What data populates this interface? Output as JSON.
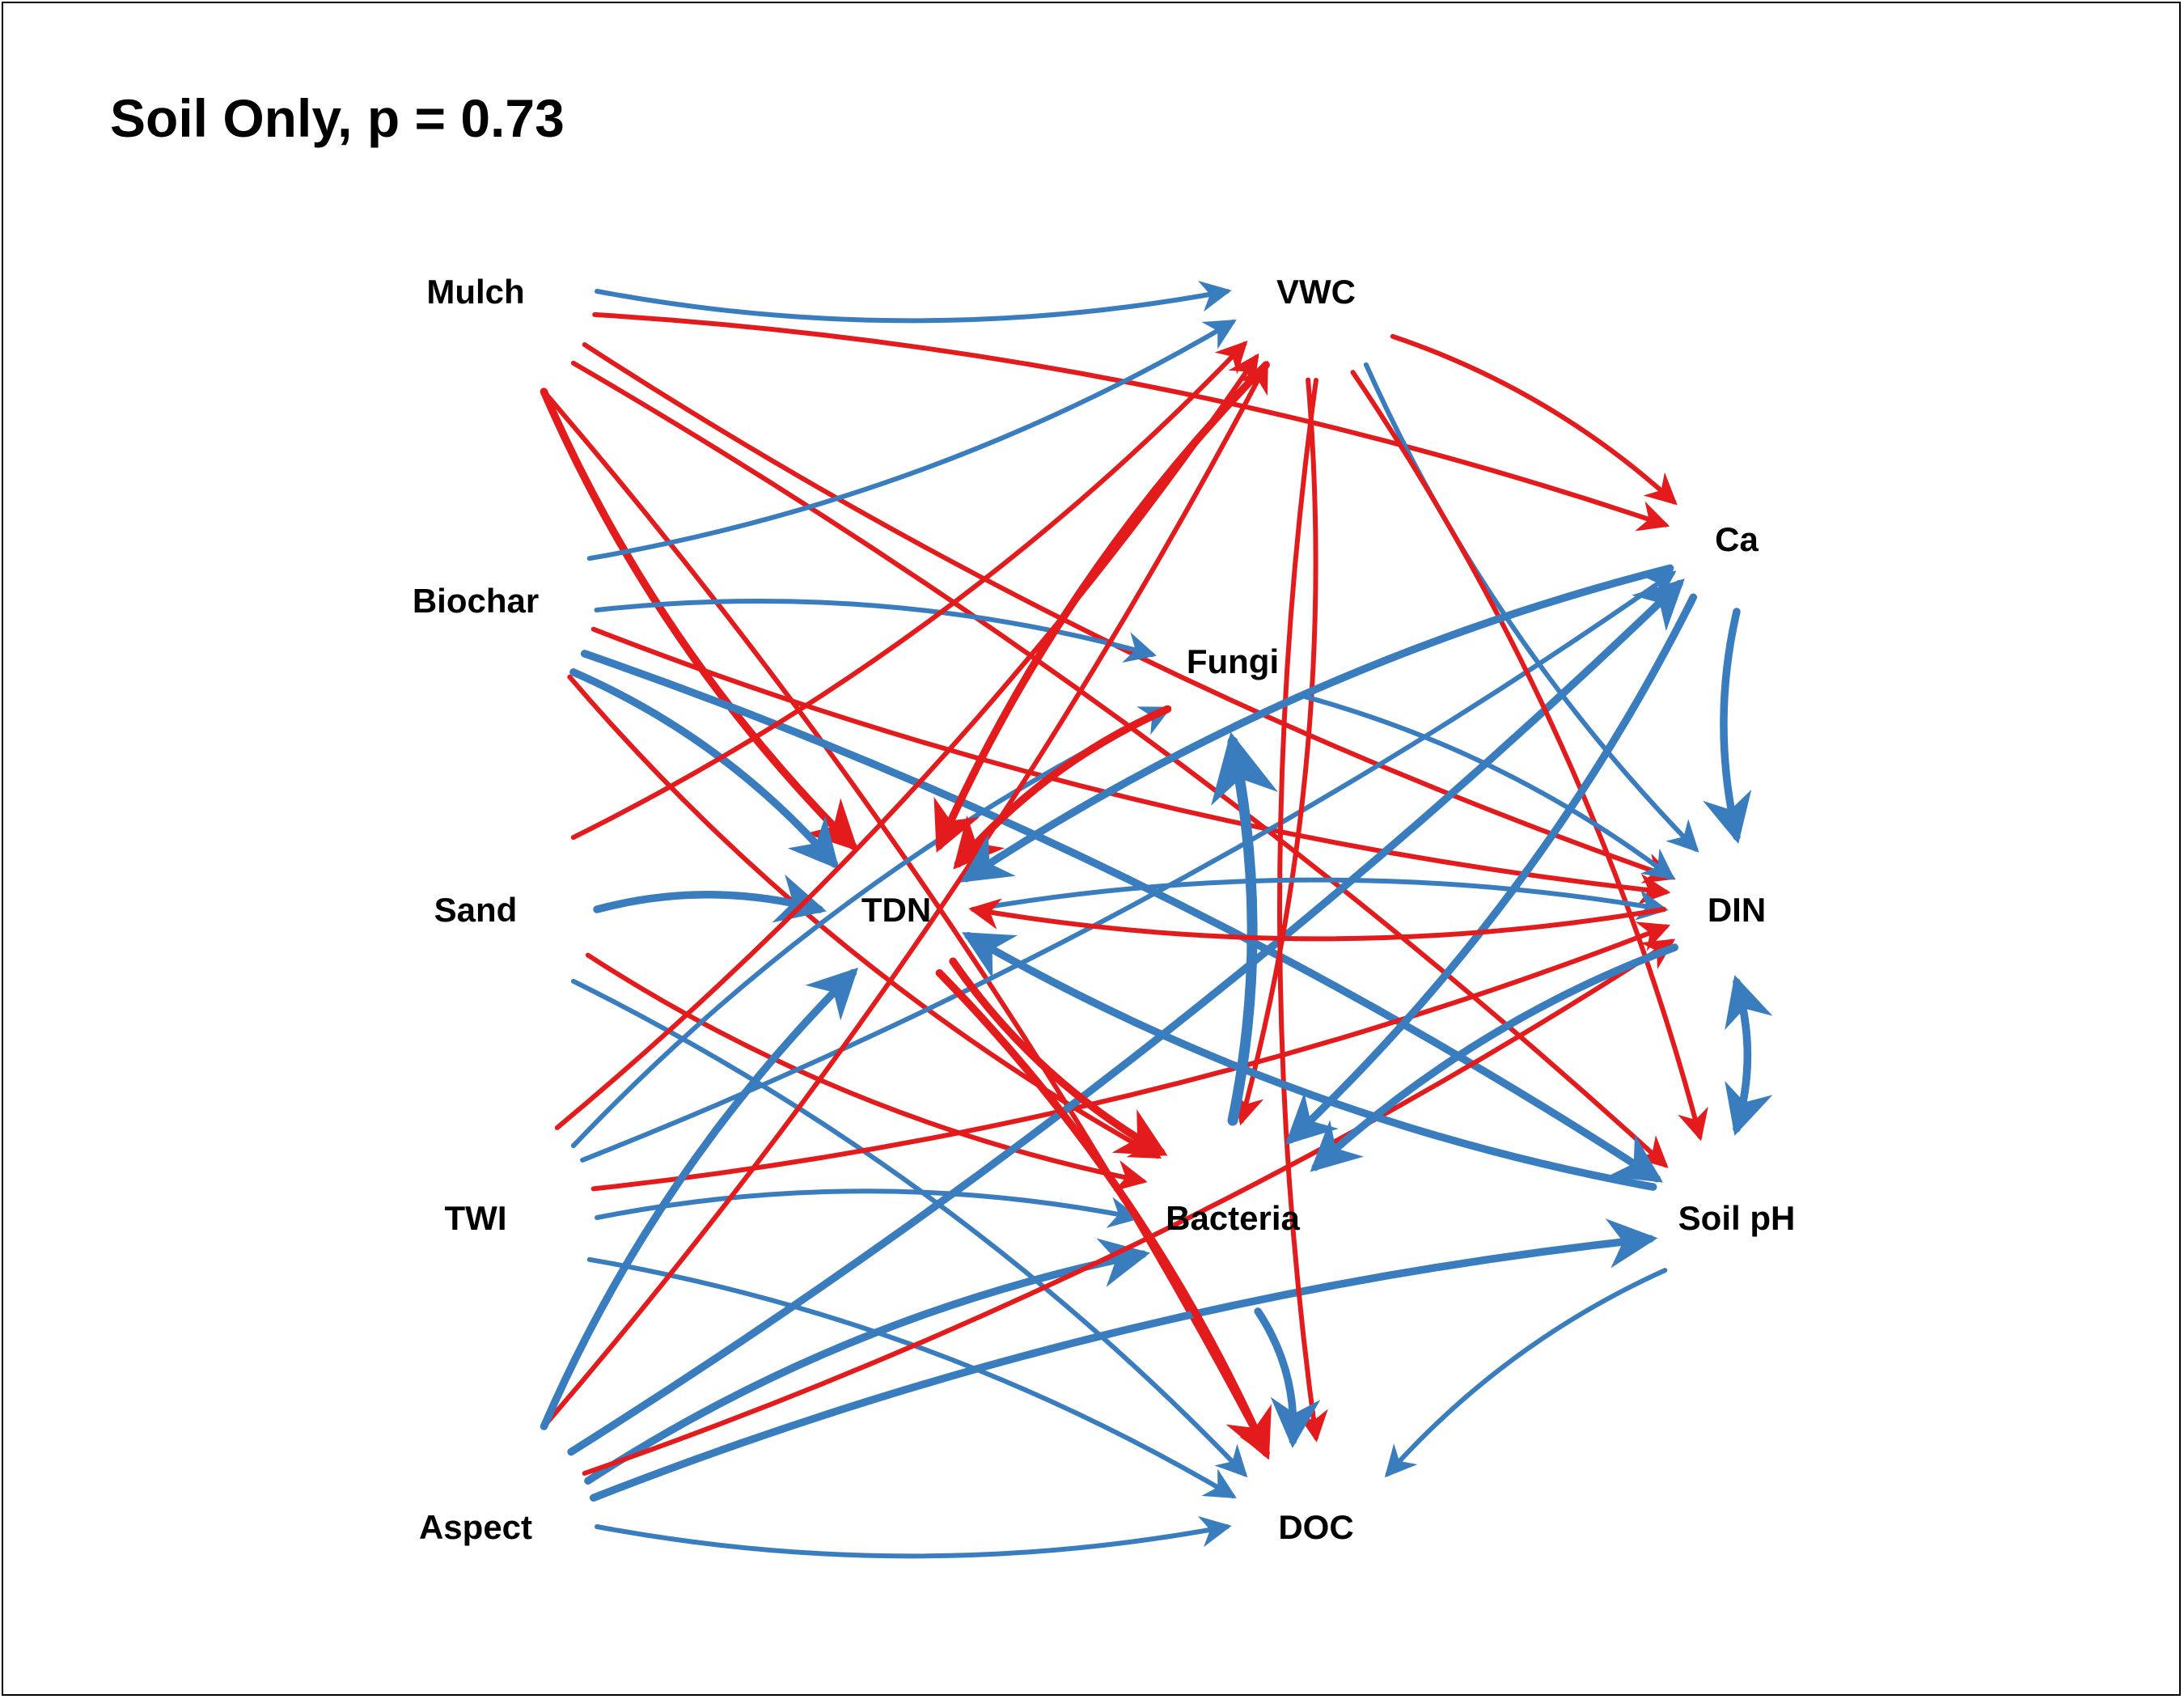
{
  "title": "Soil Only, p = 0.73",
  "colors": {
    "positive": "#3a7dbf",
    "negative": "#e31b1c",
    "text": "#000000",
    "background": "#ffffff"
  },
  "nodes": [
    {
      "id": "mulch",
      "label": "Mulch"
    },
    {
      "id": "biochar",
      "label": "Biochar"
    },
    {
      "id": "sand",
      "label": "Sand"
    },
    {
      "id": "twi",
      "label": "TWI"
    },
    {
      "id": "aspect",
      "label": "Aspect"
    },
    {
      "id": "vwc",
      "label": "VWC"
    },
    {
      "id": "fungi",
      "label": "Fungi"
    },
    {
      "id": "tdn",
      "label": "TDN"
    },
    {
      "id": "bacteria",
      "label": "Bacteria"
    },
    {
      "id": "doc",
      "label": "DOC"
    },
    {
      "id": "ca",
      "label": "Ca"
    },
    {
      "id": "din",
      "label": "DIN"
    },
    {
      "id": "soilph",
      "label": "Soil pH"
    }
  ],
  "edges": [
    {
      "from": "mulch",
      "to": "vwc",
      "sign": "positive",
      "weight": 1
    },
    {
      "from": "mulch",
      "to": "ca",
      "sign": "negative",
      "weight": 1
    },
    {
      "from": "mulch",
      "to": "din",
      "sign": "negative",
      "weight": 1
    },
    {
      "from": "mulch",
      "to": "soilph",
      "sign": "negative",
      "weight": 1
    },
    {
      "from": "mulch",
      "to": "tdn",
      "sign": "negative",
      "weight": 2
    },
    {
      "from": "mulch",
      "to": "doc",
      "sign": "negative",
      "weight": 1
    },
    {
      "from": "biochar",
      "to": "vwc",
      "sign": "positive",
      "weight": 1
    },
    {
      "from": "biochar",
      "to": "fungi",
      "sign": "positive",
      "weight": 1
    },
    {
      "from": "biochar",
      "to": "din",
      "sign": "negative",
      "weight": 1
    },
    {
      "from": "biochar",
      "to": "tdn",
      "sign": "positive",
      "weight": 2
    },
    {
      "from": "biochar",
      "to": "bacteria",
      "sign": "negative",
      "weight": 1
    },
    {
      "from": "biochar",
      "to": "soilph",
      "sign": "positive",
      "weight": 2
    },
    {
      "from": "sand",
      "to": "vwc",
      "sign": "negative",
      "weight": 1
    },
    {
      "from": "sand",
      "to": "tdn",
      "sign": "positive",
      "weight": 2
    },
    {
      "from": "sand",
      "to": "bacteria",
      "sign": "negative",
      "weight": 1
    },
    {
      "from": "sand",
      "to": "doc",
      "sign": "positive",
      "weight": 1
    },
    {
      "from": "twi",
      "to": "vwc",
      "sign": "negative",
      "weight": 1
    },
    {
      "from": "twi",
      "to": "fungi",
      "sign": "positive",
      "weight": 1
    },
    {
      "from": "twi",
      "to": "ca",
      "sign": "positive",
      "weight": 1
    },
    {
      "from": "twi",
      "to": "bacteria",
      "sign": "positive",
      "weight": 1
    },
    {
      "from": "twi",
      "to": "din",
      "sign": "negative",
      "weight": 1
    },
    {
      "from": "twi",
      "to": "doc",
      "sign": "positive",
      "weight": 1
    },
    {
      "from": "aspect",
      "to": "vwc",
      "sign": "negative",
      "weight": 1
    },
    {
      "from": "aspect",
      "to": "tdn",
      "sign": "positive",
      "weight": 2
    },
    {
      "from": "aspect",
      "to": "ca",
      "sign": "positive",
      "weight": 2
    },
    {
      "from": "aspect",
      "to": "bacteria",
      "sign": "positive",
      "weight": 2
    },
    {
      "from": "aspect",
      "to": "din",
      "sign": "negative",
      "weight": 1
    },
    {
      "from": "aspect",
      "to": "soilph",
      "sign": "positive",
      "weight": 2
    },
    {
      "from": "aspect",
      "to": "doc",
      "sign": "positive",
      "weight": 1
    },
    {
      "from": "vwc",
      "to": "ca",
      "sign": "negative",
      "weight": 1
    },
    {
      "from": "vwc",
      "to": "din",
      "sign": "positive",
      "weight": 1
    },
    {
      "from": "vwc",
      "to": "soilph",
      "sign": "negative",
      "weight": 1
    },
    {
      "from": "vwc",
      "to": "tdn",
      "sign": "negative",
      "weight": 2
    },
    {
      "from": "vwc",
      "to": "bacteria",
      "sign": "negative",
      "weight": 1
    },
    {
      "from": "vwc",
      "to": "doc",
      "sign": "negative",
      "weight": 1
    },
    {
      "from": "fungi",
      "to": "din",
      "sign": "positive",
      "weight": 1
    },
    {
      "from": "fungi",
      "to": "tdn",
      "sign": "negative",
      "weight": 2
    },
    {
      "from": "tdn",
      "to": "din",
      "sign": "positive",
      "weight": 1
    },
    {
      "from": "tdn",
      "to": "bacteria",
      "sign": "negative",
      "weight": 2
    },
    {
      "from": "tdn",
      "to": "doc",
      "sign": "negative",
      "weight": 2
    },
    {
      "from": "bacteria",
      "to": "fungi",
      "sign": "positive",
      "weight": 3
    },
    {
      "from": "bacteria",
      "to": "doc",
      "sign": "positive",
      "weight": 2
    },
    {
      "from": "ca",
      "to": "din",
      "sign": "positive",
      "weight": 2
    },
    {
      "from": "ca",
      "to": "bacteria",
      "sign": "positive",
      "weight": 2
    },
    {
      "from": "ca",
      "to": "tdn",
      "sign": "positive",
      "weight": 2
    },
    {
      "from": "din",
      "to": "tdn",
      "sign": "negative",
      "weight": 1
    },
    {
      "from": "din",
      "to": "bacteria",
      "sign": "positive",
      "weight": 2
    },
    {
      "from": "din",
      "to": "soilph",
      "sign": "positive",
      "weight": 2
    },
    {
      "from": "soilph",
      "to": "din",
      "sign": "positive",
      "weight": 2
    },
    {
      "from": "soilph",
      "to": "tdn",
      "sign": "positive",
      "weight": 2
    },
    {
      "from": "soilph",
      "to": "doc",
      "sign": "positive",
      "weight": 1
    }
  ]
}
